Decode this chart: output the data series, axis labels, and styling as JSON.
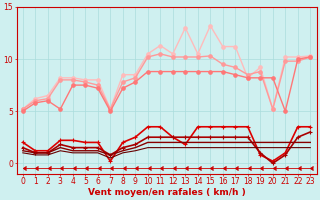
{
  "x": [
    0,
    1,
    2,
    3,
    4,
    5,
    6,
    7,
    8,
    9,
    10,
    11,
    12,
    13,
    14,
    15,
    16,
    17,
    18,
    19,
    20,
    21,
    22,
    23
  ],
  "background_color": "#cff0f0",
  "grid_color": "#aadddd",
  "xlabel": "Vent moyen/en rafales ( km/h )",
  "xlabel_color": "#cc0000",
  "lines": [
    {
      "color": "#ffbbbb",
      "values": [
        5.2,
        6.2,
        6.5,
        8.2,
        8.2,
        8.0,
        8.0,
        5.2,
        8.5,
        8.5,
        10.5,
        11.3,
        10.5,
        13.0,
        10.5,
        13.2,
        11.2,
        11.2,
        8.2,
        9.2,
        5.2,
        10.2,
        10.2,
        10.3
      ],
      "marker": "o",
      "markersize": 2.5,
      "linewidth": 1.0
    },
    {
      "color": "#ff9999",
      "values": [
        5.2,
        6.0,
        6.2,
        8.0,
        8.0,
        7.8,
        7.5,
        5.2,
        7.8,
        8.2,
        10.2,
        10.5,
        10.2,
        10.2,
        10.2,
        10.3,
        9.5,
        9.2,
        8.5,
        8.8,
        5.2,
        9.8,
        9.8,
        10.2
      ],
      "marker": "o",
      "markersize": 2.5,
      "linewidth": 1.0
    },
    {
      "color": "#ff7777",
      "values": [
        5.0,
        5.8,
        6.0,
        5.2,
        7.5,
        7.5,
        7.2,
        5.0,
        7.2,
        7.8,
        8.8,
        8.8,
        8.8,
        8.8,
        8.8,
        8.8,
        8.8,
        8.5,
        8.2,
        8.2,
        8.2,
        5.0,
        10.0,
        10.2
      ],
      "marker": "o",
      "markersize": 2.5,
      "linewidth": 1.0
    },
    {
      "color": "#dd0000",
      "values": [
        2.0,
        1.2,
        1.2,
        2.2,
        2.2,
        2.0,
        2.0,
        0.2,
        2.0,
        2.5,
        3.5,
        3.5,
        2.5,
        1.8,
        3.5,
        3.5,
        3.5,
        3.5,
        3.5,
        0.8,
        0.2,
        1.0,
        3.5,
        3.5
      ],
      "marker": "+",
      "markersize": 3,
      "linewidth": 1.2
    },
    {
      "color": "#aa0000",
      "values": [
        1.5,
        1.0,
        1.0,
        1.8,
        1.5,
        1.5,
        1.5,
        0.8,
        1.5,
        1.8,
        2.5,
        2.5,
        2.5,
        2.5,
        2.5,
        2.5,
        2.5,
        2.5,
        2.5,
        1.0,
        0.0,
        0.8,
        2.5,
        3.0
      ],
      "marker": "+",
      "markersize": 3,
      "linewidth": 1.2
    },
    {
      "color": "#880000",
      "values": [
        1.2,
        1.0,
        1.0,
        1.5,
        1.2,
        1.2,
        1.2,
        0.8,
        1.2,
        1.5,
        2.0,
        2.0,
        2.0,
        2.0,
        2.0,
        2.0,
        2.0,
        2.0,
        2.0,
        2.0,
        2.0,
        2.0,
        2.0,
        2.0
      ],
      "marker": null,
      "markersize": 0,
      "linewidth": 1.0
    },
    {
      "color": "#660000",
      "values": [
        1.0,
        0.8,
        0.8,
        1.2,
        1.0,
        1.0,
        1.0,
        0.5,
        1.0,
        1.2,
        1.5,
        1.5,
        1.5,
        1.5,
        1.5,
        1.5,
        1.5,
        1.5,
        1.5,
        1.5,
        1.5,
        1.5,
        1.5,
        1.5
      ],
      "marker": null,
      "markersize": 0,
      "linewidth": 0.8
    },
    {
      "color": "#cc0000",
      "values": [
        -0.5,
        -0.5,
        -0.5,
        -0.5,
        -0.5,
        -0.5,
        -0.5,
        -0.5,
        -0.5,
        -0.5,
        -0.5,
        -0.5,
        -0.5,
        -0.5,
        -0.5,
        -0.5,
        -0.5,
        -0.5,
        -0.5,
        -0.5,
        -0.5,
        -0.5,
        -0.5,
        -0.5
      ],
      "marker": 4,
      "markersize": 3,
      "linewidth": 0.6
    }
  ],
  "ylim": [
    -1,
    15
  ],
  "yticks": [
    0,
    5,
    10,
    15
  ],
  "xticks": [
    0,
    1,
    2,
    3,
    4,
    5,
    6,
    7,
    8,
    9,
    10,
    11,
    12,
    13,
    14,
    15,
    16,
    17,
    18,
    19,
    20,
    21,
    22,
    23
  ],
  "tick_color": "#cc0000",
  "tick_labelsize": 5.5,
  "xlabel_fontsize": 6.5
}
